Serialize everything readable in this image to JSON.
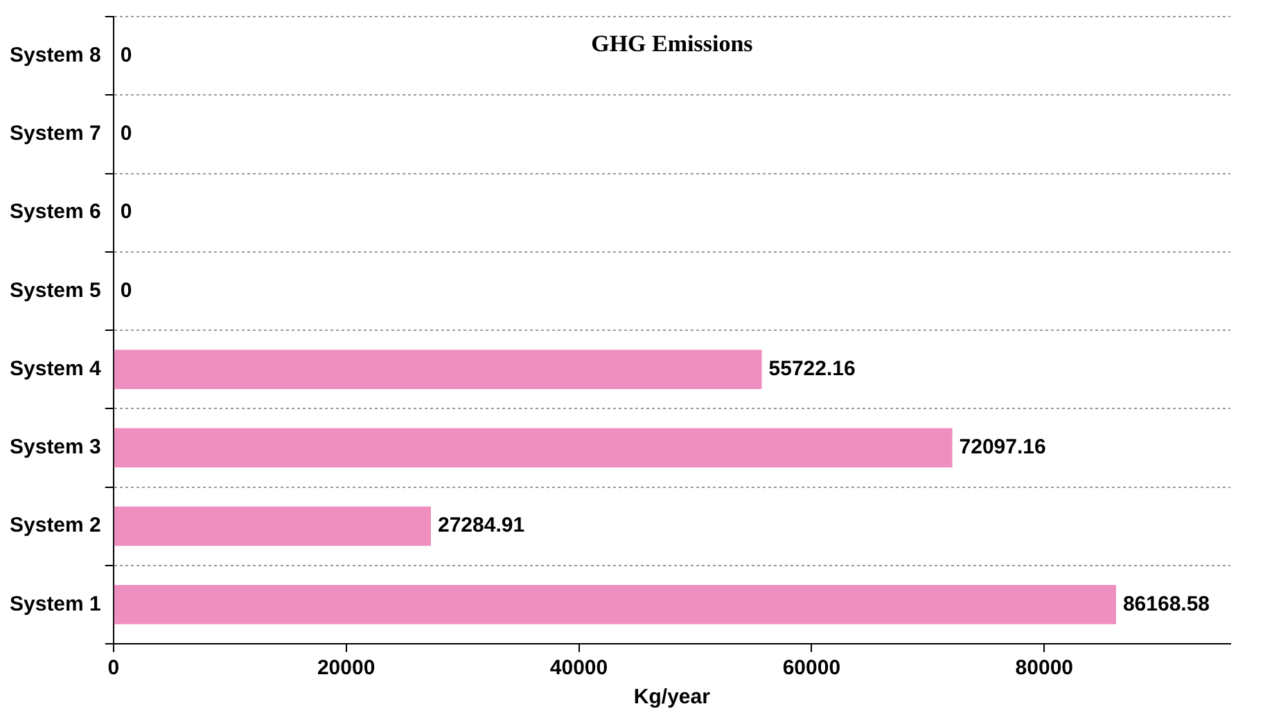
{
  "chart_data": {
    "type": "bar",
    "orientation": "horizontal",
    "title": "GHG Emissions",
    "xlabel": "Kg/year",
    "categories": [
      "System 8",
      "System 7",
      "System 6",
      "System 5",
      "System 4",
      "System 3",
      "System 2",
      "System 1"
    ],
    "values": [
      0,
      0,
      0,
      0,
      55722.16,
      72097.16,
      27284.91,
      86168.58
    ],
    "color": "#ee8fbf",
    "xlim": [
      0,
      96000
    ],
    "xticks": [
      0,
      20000,
      40000,
      60000,
      80000
    ],
    "grid": "y",
    "legend": false,
    "data_labels": true
  }
}
